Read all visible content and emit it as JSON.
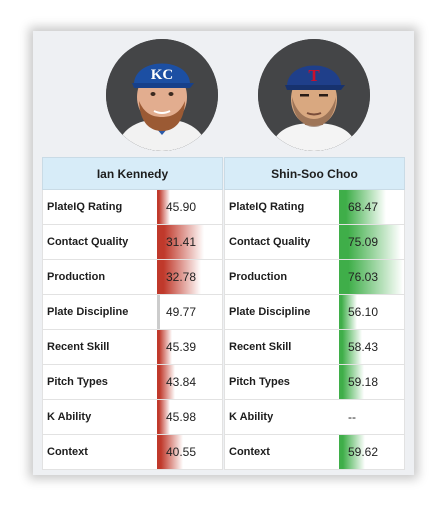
{
  "players": [
    {
      "name": "Ian Kennedy",
      "avatar_icon": "player-headshot-kc-cap",
      "cap_color": "#1c4fa3",
      "logo_color": "#ffffff",
      "metrics": [
        {
          "label": "PlateIQ Rating",
          "value": "45.90",
          "level": 0.459,
          "tone": "red"
        },
        {
          "label": "Contact Quality",
          "value": "31.41",
          "level": 0.314,
          "tone": "red"
        },
        {
          "label": "Production",
          "value": "32.78",
          "level": 0.328,
          "tone": "red"
        },
        {
          "label": "Plate Discipline",
          "value": "49.77",
          "level": 0.498,
          "tone": "neutral"
        },
        {
          "label": "Recent Skill",
          "value": "45.39",
          "level": 0.454,
          "tone": "red"
        },
        {
          "label": "Pitch Types",
          "value": "43.84",
          "level": 0.438,
          "tone": "red"
        },
        {
          "label": "K Ability",
          "value": "45.98",
          "level": 0.46,
          "tone": "red"
        },
        {
          "label": "Context",
          "value": "40.55",
          "level": 0.406,
          "tone": "red"
        }
      ]
    },
    {
      "name": "Shin-Soo Choo",
      "avatar_icon": "player-headshot-tex-cap",
      "cap_color": "#1f3f8a",
      "logo_color": "#c8102e",
      "metrics": [
        {
          "label": "PlateIQ Rating",
          "value": "68.47",
          "level": 0.685,
          "tone": "green"
        },
        {
          "label": "Contact Quality",
          "value": "75.09",
          "level": 0.751,
          "tone": "green"
        },
        {
          "label": "Production",
          "value": "76.03",
          "level": 0.76,
          "tone": "green"
        },
        {
          "label": "Plate Discipline",
          "value": "56.10",
          "level": 0.561,
          "tone": "green"
        },
        {
          "label": "Recent Skill",
          "value": "58.43",
          "level": 0.584,
          "tone": "green"
        },
        {
          "label": "Pitch Types",
          "value": "59.18",
          "level": 0.592,
          "tone": "green"
        },
        {
          "label": "K Ability",
          "value": "--",
          "level": 0,
          "tone": "none"
        },
        {
          "label": "Context",
          "value": "59.62",
          "level": 0.596,
          "tone": "green"
        }
      ]
    }
  ],
  "colors": {
    "red": "#c0392b",
    "green": "#3fae49",
    "neutral": "#cccccc"
  }
}
